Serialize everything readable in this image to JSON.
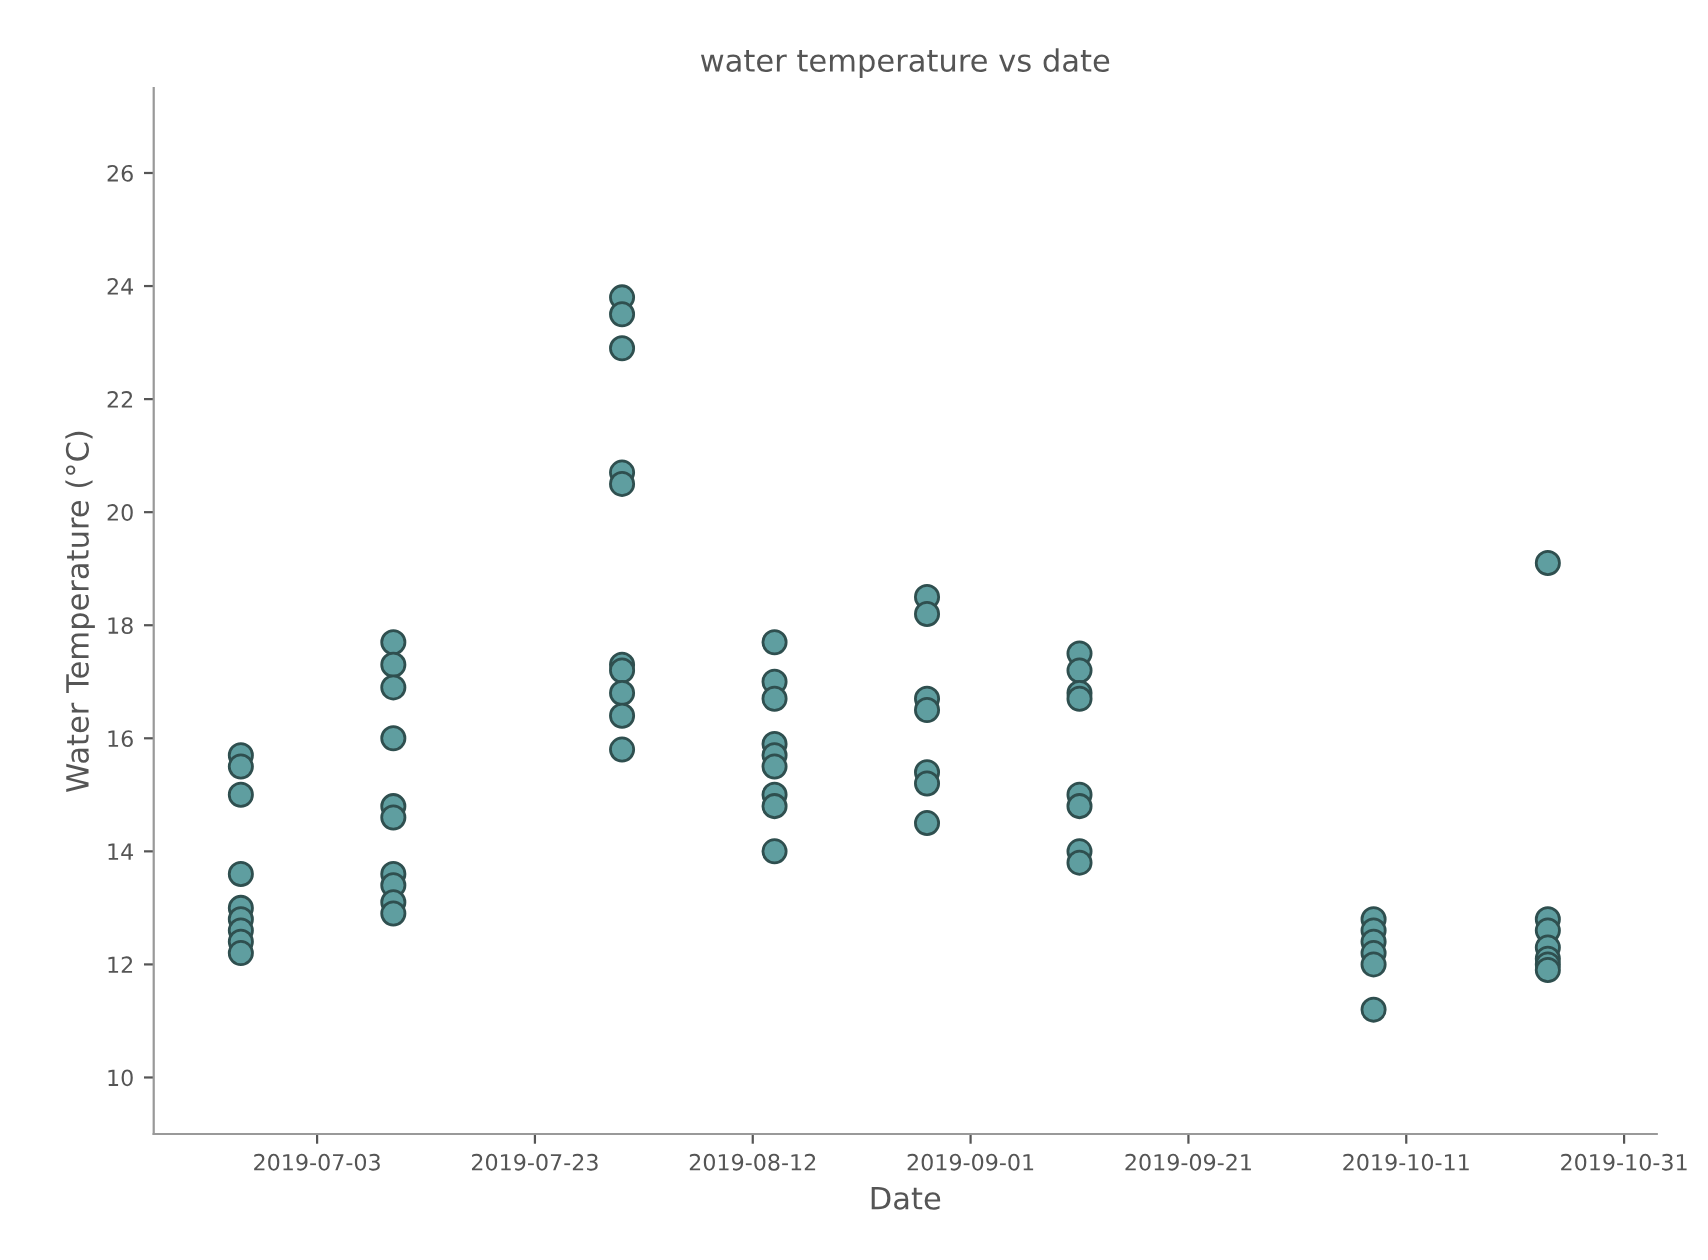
{
  "chart_data": {
    "type": "scatter",
    "title": "water temperature vs date",
    "xlabel": "Date",
    "ylabel": "Water Temperature (°C)",
    "x": [
      "2019-06-26",
      "2019-06-26",
      "2019-06-26",
      "2019-06-26",
      "2019-06-26",
      "2019-06-26",
      "2019-06-26",
      "2019-06-26",
      "2019-06-26",
      "2019-07-10",
      "2019-07-10",
      "2019-07-10",
      "2019-07-10",
      "2019-07-10",
      "2019-07-10",
      "2019-07-10",
      "2019-07-10",
      "2019-07-10",
      "2019-07-10",
      "2019-07-31",
      "2019-07-31",
      "2019-07-31",
      "2019-07-31",
      "2019-07-31",
      "2019-07-31",
      "2019-07-31",
      "2019-07-31",
      "2019-07-31",
      "2019-07-31",
      "2019-08-14",
      "2019-08-14",
      "2019-08-14",
      "2019-08-14",
      "2019-08-14",
      "2019-08-14",
      "2019-08-14",
      "2019-08-14",
      "2019-08-14",
      "2019-08-28",
      "2019-08-28",
      "2019-08-28",
      "2019-08-28",
      "2019-08-28",
      "2019-08-28",
      "2019-08-28",
      "2019-09-11",
      "2019-09-11",
      "2019-09-11",
      "2019-09-11",
      "2019-09-11",
      "2019-09-11",
      "2019-09-11",
      "2019-09-11",
      "2019-10-08",
      "2019-10-08",
      "2019-10-08",
      "2019-10-08",
      "2019-10-08",
      "2019-10-08",
      "2019-10-24",
      "2019-10-24",
      "2019-10-24",
      "2019-10-24",
      "2019-10-24",
      "2019-10-24",
      "2019-10-24"
    ],
    "series": [
      {
        "color": "#5f9ea0",
        "values": [
          15.7,
          15.5,
          15.0,
          13.6,
          13.0,
          12.8,
          12.6,
          12.4,
          12.2,
          17.7,
          17.3,
          16.9,
          16.0,
          14.8,
          14.6,
          13.6,
          13.4,
          13.1,
          12.9,
          23.8,
          23.5,
          22.9,
          20.7,
          20.5,
          17.3,
          17.2,
          16.8,
          16.4,
          15.8,
          17.7,
          17.0,
          16.7,
          15.9,
          15.7,
          15.5,
          15.0,
          14.8,
          14.0,
          18.5,
          18.2,
          16.7,
          16.5,
          15.4,
          15.2,
          14.5,
          17.5,
          17.2,
          16.8,
          16.7,
          15.0,
          14.8,
          14.0,
          13.8,
          12.8,
          12.6,
          12.4,
          12.2,
          12.0,
          11.2,
          19.1,
          12.8,
          12.6,
          12.3,
          12.1,
          12.0,
          11.9
        ]
      }
    ],
    "xlim": [
      "2019-06-18",
      "2019-11-03"
    ],
    "xticks": [
      "2019-07-03",
      "2019-07-23",
      "2019-08-12",
      "2019-09-01",
      "2019-09-21",
      "2019-10-11",
      "2019-10-31"
    ],
    "ylim": [
      9.0,
      27.5
    ],
    "yticks": [
      10,
      12,
      14,
      16,
      18,
      20,
      22,
      24,
      26
    ],
    "marker": "circle",
    "grid": false
  }
}
